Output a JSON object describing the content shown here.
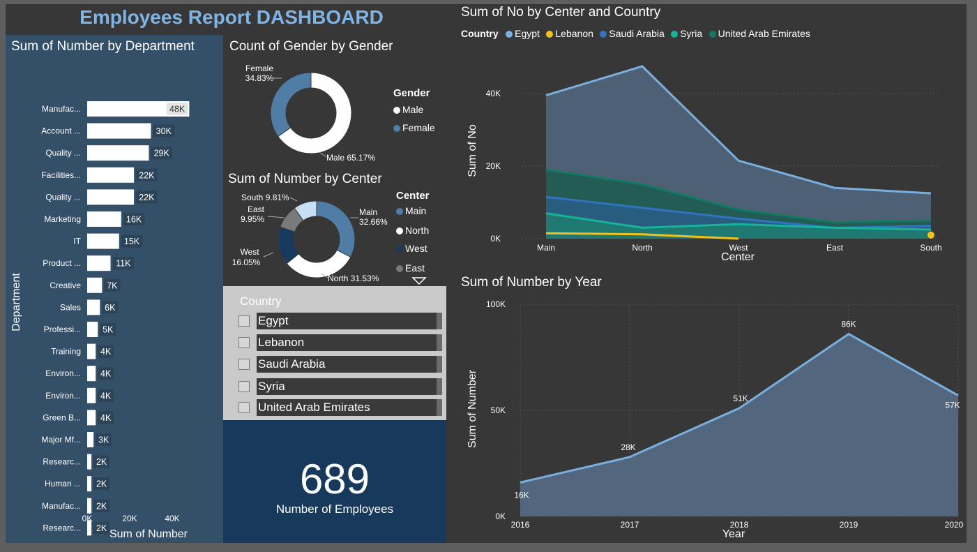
{
  "page": {
    "title": "Employees Report DASHBOARD"
  },
  "colors": {
    "panel_blue": "#345068",
    "card_blue": "#17395c",
    "bg": "#373737",
    "egypt": "#7ab0e0",
    "lebanon": "#f2c21a",
    "saudi": "#2f74c0",
    "syria": "#17b39a",
    "uae": "#127a63",
    "male": "#ffffff",
    "female": "#4f7da6",
    "main": "#4f7da6",
    "north": "#ffffff",
    "west": "#183a5e",
    "east": "#7a7a7a",
    "south": "#c5dff4"
  },
  "department_chart": {
    "title": "Sum of Number by Department",
    "ylabel": "Department",
    "xlabel": "Sum of Number",
    "xticks": [
      "0K",
      "20K",
      "40K"
    ]
  },
  "gender_chart": {
    "title": "Count of Gender by Gender",
    "legend_title": "Gender",
    "legend": [
      "Male",
      "Female"
    ],
    "labels": {
      "female_name": "Female",
      "female_pct": "34.83%",
      "male": "Male 65.17%"
    }
  },
  "center_donut": {
    "title": "Sum of Number by Center",
    "legend_title": "Center",
    "legend": [
      "Main",
      "North",
      "West",
      "East"
    ],
    "labels": {
      "south": "South 9.81%",
      "east_name": "East",
      "east_pct": "9.95%",
      "west_name": "West",
      "west_pct": "16.05%",
      "main_name": "Main",
      "main_pct": "32.66%",
      "north": "North 31.53%"
    }
  },
  "center_country_chart": {
    "title": "Sum of No by Center and Country",
    "legend_title": "Country",
    "legend": [
      "Egypt",
      "Lebanon",
      "Saudi Arabia",
      "Syria",
      "United Arab Emirates"
    ],
    "ylabel": "Sum of No",
    "xlabel": "Center",
    "yticks": [
      "0K",
      "20K",
      "40K"
    ],
    "xticks": [
      "Main",
      "North",
      "West",
      "East",
      "South"
    ]
  },
  "year_chart": {
    "title": "Sum of Number by Year",
    "ylabel": "Sum of Number",
    "xlabel": "Year",
    "yticks": [
      "0K",
      "50K",
      "100K"
    ],
    "xticks": [
      "2016",
      "2017",
      "2018",
      "2019",
      "2020"
    ]
  },
  "slicer": {
    "title": "Country",
    "items": [
      "Egypt",
      "Lebanon",
      "Saudi Arabia",
      "Syria",
      "United Arab Emirates"
    ]
  },
  "card": {
    "value": "689",
    "label": "Number of Employees"
  },
  "chart_data": [
    {
      "type": "bar",
      "title": "Sum of Number by Department",
      "xlabel": "Sum of Number",
      "ylabel": "Department",
      "xlim": [
        0,
        50000
      ],
      "categories": [
        "Manufac...",
        "Account ...",
        "Quality ...",
        "Facilities...",
        "Quality ...",
        "Marketing",
        "IT",
        "Product ...",
        "Creative",
        "Sales",
        "Professi...",
        "Training",
        "Environ...",
        "Environ...",
        "Green B...",
        "Major Mf...",
        "Researc...",
        "Human ...",
        "Manufac...",
        "Researc..."
      ],
      "values": [
        48000,
        30000,
        29000,
        22000,
        22000,
        16000,
        15000,
        11000,
        7000,
        6000,
        5000,
        4000,
        4000,
        4000,
        4000,
        3000,
        2000,
        2000,
        2000,
        2000
      ],
      "data_labels": [
        "48K",
        "30K",
        "29K",
        "22K",
        "22K",
        "16K",
        "15K",
        "11K",
        "7K",
        "6K",
        "5K",
        "4K",
        "4K",
        "4K",
        "4K",
        "3K",
        "2K",
        "2K",
        "2K",
        "2K"
      ]
    },
    {
      "type": "pie",
      "title": "Count of Gender by Gender",
      "categories": [
        "Male",
        "Female"
      ],
      "values": [
        65.17,
        34.83
      ]
    },
    {
      "type": "pie",
      "title": "Sum of Number by Center",
      "categories": [
        "Main",
        "North",
        "West",
        "East",
        "South"
      ],
      "values": [
        32.66,
        31.53,
        16.05,
        9.95,
        9.81
      ]
    },
    {
      "type": "area",
      "title": "Sum of No by Center and Country",
      "xlabel": "Center",
      "ylabel": "Sum of No",
      "ylim": [
        0,
        48000
      ],
      "categories": [
        "Main",
        "North",
        "West",
        "East",
        "South"
      ],
      "series": [
        {
          "name": "Egypt",
          "values": [
            39500,
            47500,
            21500,
            14000,
            12500
          ]
        },
        {
          "name": "United Arab Emirates",
          "values": [
            19000,
            15000,
            8000,
            4500,
            5000
          ]
        },
        {
          "name": "Saudi Arabia",
          "values": [
            11500,
            8500,
            5500,
            3000,
            3500
          ]
        },
        {
          "name": "Syria",
          "values": [
            7000,
            3000,
            4000,
            3000,
            2500
          ]
        },
        {
          "name": "Lebanon",
          "values": [
            1500,
            1200,
            0,
            null,
            1000
          ]
        }
      ]
    },
    {
      "type": "area",
      "title": "Sum of Number by Year",
      "xlabel": "Year",
      "ylabel": "Sum of Number",
      "ylim": [
        0,
        100000
      ],
      "categories": [
        "2016",
        "2017",
        "2018",
        "2019",
        "2020"
      ],
      "values": [
        16000,
        28000,
        51000,
        86000,
        57000
      ],
      "data_labels": [
        "16K",
        "28K",
        "51K",
        "86K",
        "57K"
      ]
    }
  ]
}
